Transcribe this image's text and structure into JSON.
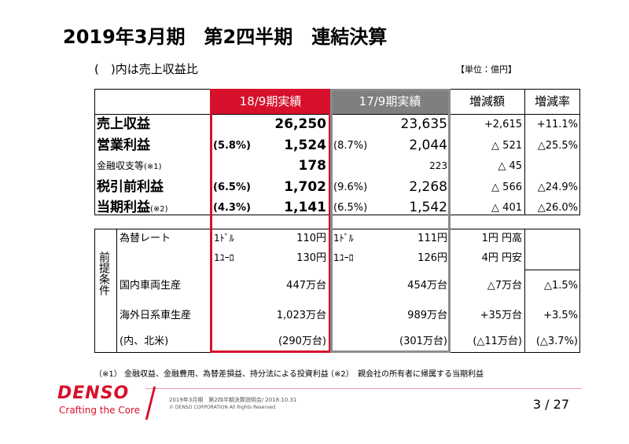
{
  "header": {
    "title": "2019年3月期　第2四半期　連結決算",
    "note": "(　)内は売上収益比",
    "unit": "【単位：億円】"
  },
  "results": {
    "columns": [
      "18/9期実績",
      "17/9期実績",
      "増減額",
      "増減率"
    ],
    "rows": [
      {
        "label": "売上収益",
        "current": "26,250",
        "previous": "23,635",
        "change": "+2,615",
        "rate": "+11.1%"
      },
      {
        "label": "営業利益",
        "current_ratio": "(5.8%)",
        "current": "1,524",
        "previous_ratio": "(8.7%)",
        "previous": "2,044",
        "change": "△ 521",
        "rate": "△25.5%"
      },
      {
        "label": "金融収支等",
        "label_note": "(※1)",
        "current": "178",
        "previous": "223",
        "change": "△ 45"
      },
      {
        "label": "税引前利益",
        "current_ratio": "(6.5%)",
        "current": "1,702",
        "previous_ratio": "(9.6%)",
        "previous": "2,268",
        "change": "△ 566",
        "rate": "△24.9%"
      },
      {
        "label": "当期利益",
        "label_note": "(※2)",
        "current_ratio": "(4.3%)",
        "current": "1,141",
        "previous_ratio": "(6.5%)",
        "previous": "1,542",
        "change": "△ 401",
        "rate": "△26.0%"
      }
    ]
  },
  "assumptions": {
    "side_label": "前提条件",
    "rows": [
      {
        "label": "為替レート",
        "current_unit": "1ﾄﾞﾙ",
        "current": "110円",
        "previous_unit": "1ﾄﾞﾙ",
        "previous": "111円",
        "change": "1円 円高"
      },
      {
        "current_unit": "1ﾕｰﾛ",
        "current": "130円",
        "previous_unit": "1ﾕｰﾛ",
        "previous": "126円",
        "change": "4円 円安"
      },
      {
        "label": "国内車両生産",
        "current": "447万台",
        "previous": "454万台",
        "change": "△7万台",
        "rate": "△1.5%"
      },
      {
        "label": "海外日系車生産",
        "current": "1,023万台",
        "previous": "989万台",
        "change": "+35万台",
        "rate": "+3.5%"
      },
      {
        "label": "(内、北米)",
        "current": "(290万台)",
        "previous": "(301万台)",
        "change": "(△11万台)",
        "rate": "(△3.7%)"
      }
    ]
  },
  "footnotes": [
    {
      "mark": "（※1）",
      "text": "金融収益、金融費用、為替差損益、持分法による投資利益"
    },
    {
      "mark": "（※2）",
      "text": "親会社の所有者に帰属する当期利益"
    }
  ],
  "footer": {
    "logo": "DENSO",
    "tagline": "Crafting the Core",
    "event": "2019年3月期　第2四半期決算説明会/ 2018.10.31",
    "copyright": "© DENSO CORPORATION All Rights Reserved.",
    "page": "3 / 27"
  }
}
